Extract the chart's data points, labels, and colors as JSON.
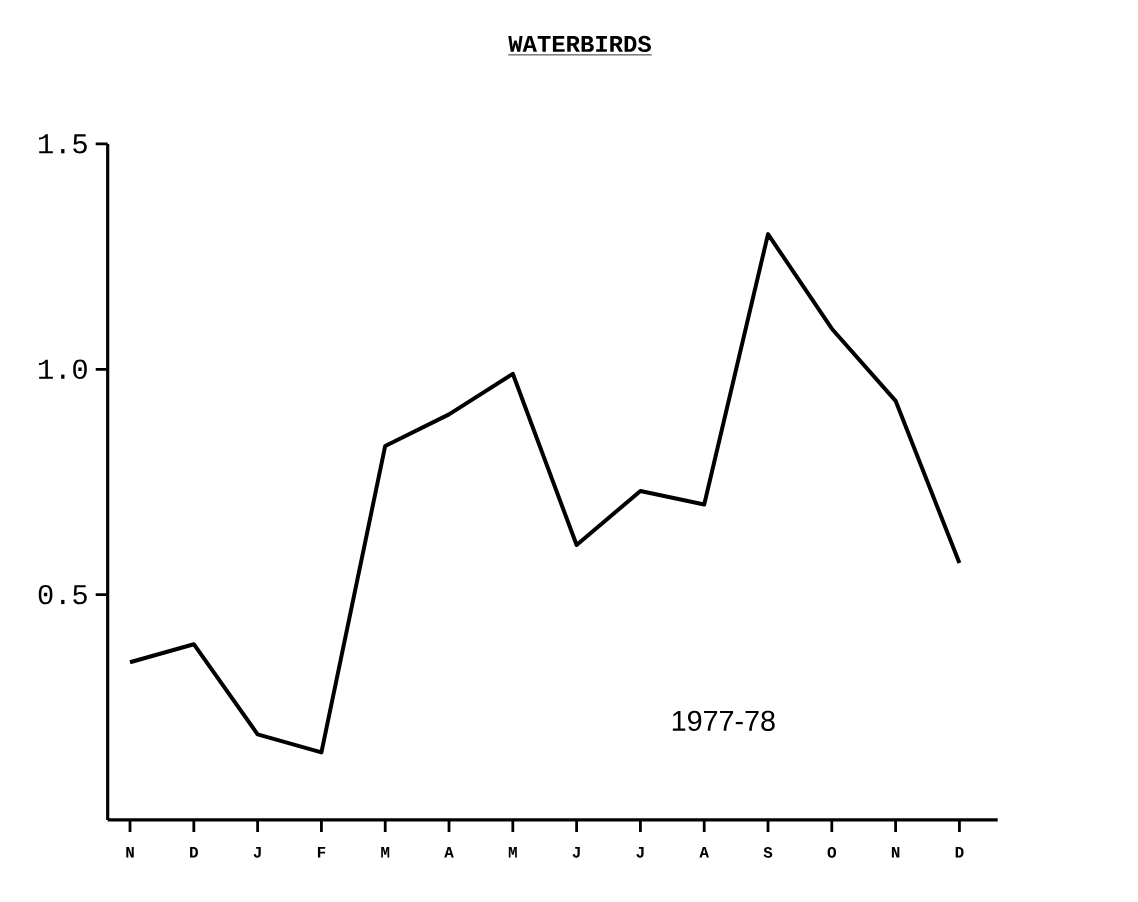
{
  "chart_data": {
    "type": "line",
    "title": "WATERBIRDS",
    "categories": [
      "N",
      "D",
      "J",
      "F",
      "M",
      "A",
      "M",
      "J",
      "J",
      "A",
      "S",
      "O",
      "N",
      "D"
    ],
    "values": [
      0.35,
      0.39,
      0.19,
      0.15,
      0.83,
      0.9,
      0.99,
      0.61,
      0.73,
      0.7,
      1.3,
      1.09,
      0.93,
      0.57
    ],
    "color": "#000000",
    "ylim": [
      0,
      1.5
    ],
    "yticks": [
      0.5,
      {
        "value": 1.0,
        "label": "1.0"
      },
      1.5
    ],
    "annotations": [
      "1977-78"
    ],
    "grid": false,
    "marker": "none",
    "line_style": "solid"
  }
}
